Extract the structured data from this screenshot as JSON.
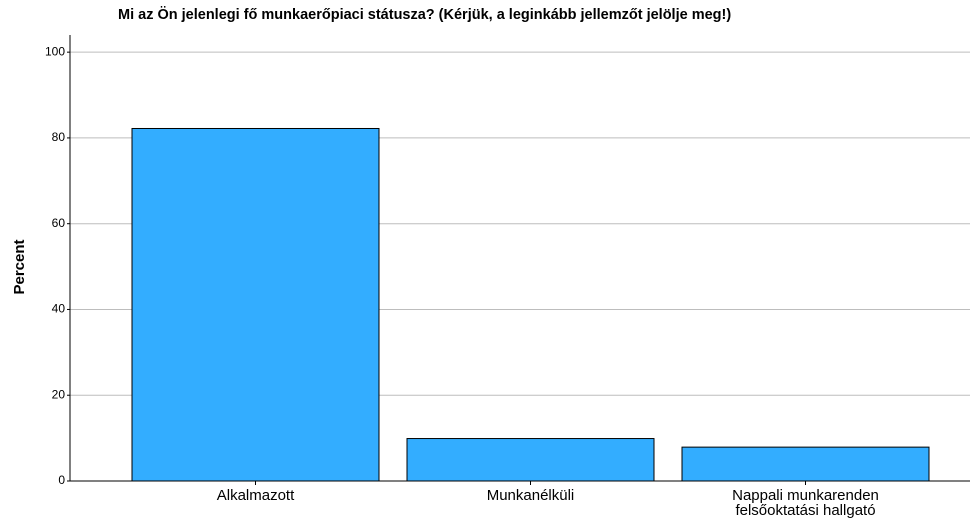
{
  "chart_data": {
    "type": "bar",
    "title": "Mi az Ön jelenlegi fő munkaerőpiaci státusza? (Kérjük, a leginkább jellemzőt jelölje meg!)",
    "y_label": "Percent",
    "categories": [
      "Alkalmazott",
      "Munkanélküli",
      "Nappali munkarenden felsőoktatási hallgató"
    ],
    "values": [
      82.2,
      9.9,
      7.9
    ],
    "color": "#33adff",
    "ylim": [
      0,
      104
    ],
    "yticks": [
      0,
      20,
      40,
      60,
      80,
      100
    ],
    "grid": true
  }
}
